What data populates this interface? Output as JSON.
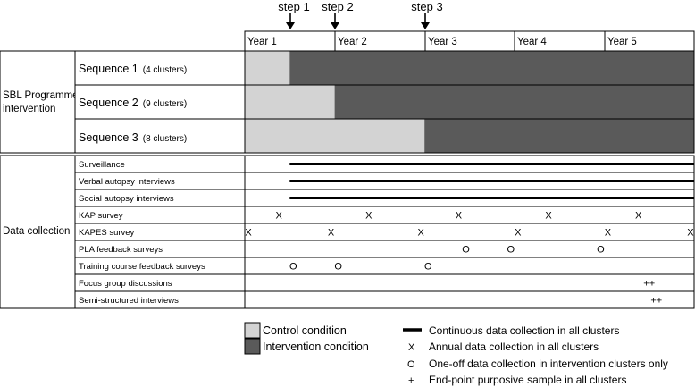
{
  "steps": [
    "step 1",
    "step 2",
    "step 3"
  ],
  "years": [
    "Year 1",
    "Year 2",
    "Year 3",
    "Year 4",
    "Year 5"
  ],
  "programme": {
    "label_line1": "SBL Programme",
    "label_line2": "intervention",
    "sequences": [
      {
        "name": "Sequence 1",
        "clusters": "(4 clusters)",
        "control_until_year": 0.5
      },
      {
        "name": "Sequence 2",
        "clusters": "(9 clusters)",
        "control_until_year": 1.0
      },
      {
        "name": "Sequence 3",
        "clusters": "(8 clusters)",
        "control_until_year": 2.0
      }
    ]
  },
  "data_collection": {
    "label": "Data collection",
    "rows": [
      {
        "name": "Surveillance",
        "continuous_from_year": 0.5,
        "marks": []
      },
      {
        "name": "Verbal autopsy interviews",
        "continuous_from_year": 0.5,
        "marks": []
      },
      {
        "name": "Social autopsy interviews",
        "continuous_from_year": 0.5,
        "marks": []
      },
      {
        "name": "KAP survey",
        "continuous_from_year": null,
        "marks": [
          {
            "symbol": "X",
            "year": 0.38
          },
          {
            "symbol": "X",
            "year": 1.38
          },
          {
            "symbol": "X",
            "year": 2.38
          },
          {
            "symbol": "X",
            "year": 3.38
          },
          {
            "symbol": "X",
            "year": 4.38
          }
        ]
      },
      {
        "name": "KAPES survey",
        "continuous_from_year": null,
        "marks": [
          {
            "symbol": "X",
            "year": 0.04
          },
          {
            "symbol": "X",
            "year": 0.96
          },
          {
            "symbol": "X",
            "year": 1.96
          },
          {
            "symbol": "X",
            "year": 3.04
          },
          {
            "symbol": "X",
            "year": 4.04
          },
          {
            "symbol": "X",
            "year": 4.96
          }
        ]
      },
      {
        "name": "PLA feedback surveys",
        "continuous_from_year": null,
        "marks": [
          {
            "symbol": "O",
            "year": 2.46
          },
          {
            "symbol": "O",
            "year": 2.96
          },
          {
            "symbol": "O",
            "year": 3.96
          }
        ]
      },
      {
        "name": "Training course feedback surveys",
        "continuous_from_year": null,
        "marks": [
          {
            "symbol": "O",
            "year": 0.54
          },
          {
            "symbol": "O",
            "year": 1.04
          },
          {
            "symbol": "O",
            "year": 2.04
          }
        ]
      },
      {
        "name": "Focus group discussions",
        "continuous_from_year": null,
        "marks": [
          {
            "symbol": "++",
            "year": 4.5
          }
        ]
      },
      {
        "name": "Semi-structured interviews",
        "continuous_from_year": null,
        "marks": [
          {
            "symbol": "++",
            "year": 4.58
          }
        ]
      }
    ]
  },
  "legend": {
    "control": "Control condition",
    "intervention": "Intervention condition",
    "continuous": "Continuous data collection in all clusters",
    "annual_symbol": "X",
    "annual": "Annual data collection in all clusters",
    "oneoff_symbol": "O",
    "oneoff": "One-off data collection in intervention clusters only",
    "endpoint_symbol": "+",
    "endpoint": "End-point purposive sample in all clusters"
  },
  "colors": {
    "control": "#d3d3d3",
    "intervention": "#5a5a5a",
    "border": "#000000"
  }
}
